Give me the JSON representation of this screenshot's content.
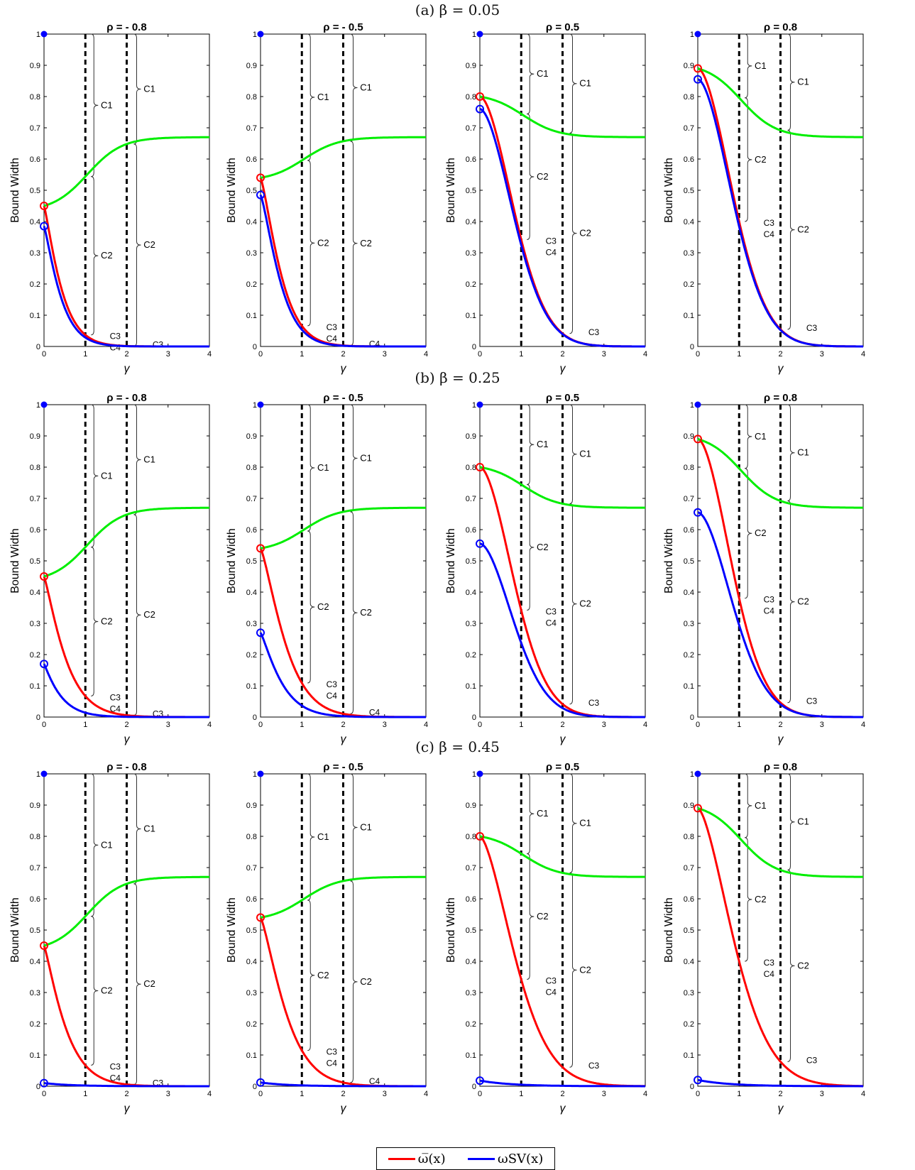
{
  "figure": {
    "row_titles": [
      "(a) β = 0.05",
      "(b) β = 0.25",
      "(c) β = 0.45"
    ],
    "legend": [
      {
        "label": "ω̅(x)",
        "color": "#ff0000"
      },
      {
        "label": "ωSV(x)",
        "color": "#0000ff"
      }
    ],
    "colors": {
      "red": "#ff0000",
      "blue": "#0000ff",
      "green": "#00ee00",
      "dashed": "#000000"
    }
  },
  "chart_data": [
    {
      "type": "line",
      "row": "(a) β = 0.05",
      "title": "ρ = - 0.8",
      "xlabel": "γ",
      "ylabel": "Bound Width",
      "xlim": [
        0,
        4
      ],
      "ylim": [
        0,
        1
      ],
      "xticks": [
        0,
        1,
        2,
        3,
        4
      ],
      "yticks": [
        0,
        0.1,
        0.2,
        0.3,
        0.4,
        0.5,
        0.6,
        0.7,
        0.8,
        0.9,
        1
      ],
      "vlines": [
        1,
        2
      ],
      "series": [
        {
          "color": "red",
          "start": 0.45,
          "rate": 2.5,
          "power": 1.2
        },
        {
          "color": "blue",
          "start": 0.385,
          "rate": 2.6,
          "power": 1.2
        },
        {
          "color": "green",
          "start": 0.45,
          "end": 0.67
        }
      ],
      "annotations": [
        "C1",
        "C2",
        "C3",
        "C4",
        "C1",
        "C2",
        "C3"
      ]
    },
    {
      "type": "line",
      "row": "(a) β = 0.05",
      "title": "ρ = - 0.5",
      "xlabel": "γ",
      "ylabel": "Bound Width",
      "xlim": [
        0,
        4
      ],
      "ylim": [
        0,
        1
      ],
      "xticks": [
        0,
        1,
        2,
        3,
        4
      ],
      "yticks": [
        0,
        0.1,
        0.2,
        0.3,
        0.4,
        0.5,
        0.6,
        0.7,
        0.8,
        0.9,
        1
      ],
      "vlines": [
        1,
        2
      ],
      "series": [
        {
          "color": "red",
          "start": 0.54,
          "rate": 2.1,
          "power": 1.3
        },
        {
          "color": "blue",
          "start": 0.485,
          "rate": 2.2,
          "power": 1.3
        },
        {
          "color": "green",
          "start": 0.54,
          "end": 0.67
        }
      ],
      "annotations": [
        "C1",
        "C2",
        "C3",
        "C4",
        "C1",
        "C2",
        "C4"
      ]
    },
    {
      "type": "line",
      "row": "(a) β = 0.05",
      "title": "ρ = 0.5",
      "xlabel": "γ",
      "ylabel": "Bound Width",
      "xlim": [
        0,
        4
      ],
      "ylim": [
        0,
        1
      ],
      "xticks": [
        0,
        1,
        2,
        3,
        4
      ],
      "yticks": [
        0,
        0.1,
        0.2,
        0.3,
        0.4,
        0.5,
        0.6,
        0.7,
        0.8,
        0.9,
        1
      ],
      "vlines": [
        1,
        2
      ],
      "series": [
        {
          "color": "red",
          "start": 0.8,
          "rate": 0.85,
          "power": 1.8
        },
        {
          "color": "blue",
          "start": 0.76,
          "rate": 0.85,
          "power": 1.8
        },
        {
          "color": "green",
          "start": 0.8,
          "end": 0.67
        }
      ],
      "annotations": [
        "C1",
        "C2",
        "C3",
        "C4",
        "C1",
        "C2",
        "C3"
      ]
    },
    {
      "type": "line",
      "row": "(a) β = 0.05",
      "title": "ρ = 0.8",
      "xlabel": "γ",
      "ylabel": "Bound Width",
      "xlim": [
        0,
        4
      ],
      "ylim": [
        0,
        1
      ],
      "xticks": [
        0,
        1,
        2,
        3,
        4
      ],
      "yticks": [
        0,
        0.1,
        0.2,
        0.3,
        0.4,
        0.5,
        0.6,
        0.7,
        0.8,
        0.9,
        1
      ],
      "vlines": [
        1,
        2
      ],
      "series": [
        {
          "color": "red",
          "start": 0.89,
          "rate": 0.8,
          "power": 1.8
        },
        {
          "color": "blue",
          "start": 0.855,
          "rate": 0.8,
          "power": 1.8
        },
        {
          "color": "green",
          "start": 0.89,
          "end": 0.67
        }
      ],
      "annotations": [
        "C1",
        "C2",
        "C3",
        "C4",
        "C1",
        "C2",
        "C3"
      ]
    },
    {
      "type": "line",
      "row": "(b) β = 0.25",
      "title": "ρ = - 0.8",
      "xlabel": "γ",
      "ylabel": "Bound Width",
      "xlim": [
        0,
        4
      ],
      "ylim": [
        0,
        1
      ],
      "xticks": [
        0,
        1,
        2,
        3,
        4
      ],
      "yticks": [
        0,
        0.1,
        0.2,
        0.3,
        0.4,
        0.5,
        0.6,
        0.7,
        0.8,
        0.9,
        1
      ],
      "vlines": [
        1,
        2
      ],
      "series": [
        {
          "color": "red",
          "start": 0.45,
          "rate": 1.9,
          "power": 1.2
        },
        {
          "color": "blue",
          "start": 0.17,
          "rate": 2.5,
          "power": 1.1
        },
        {
          "color": "green",
          "start": 0.45,
          "end": 0.67
        }
      ],
      "annotations": [
        "C1",
        "C2",
        "C3",
        "C4",
        "C1",
        "C2",
        "C3"
      ]
    },
    {
      "type": "line",
      "row": "(b) β = 0.25",
      "title": "ρ = - 0.5",
      "xlabel": "γ",
      "ylabel": "Bound Width",
      "xlim": [
        0,
        4
      ],
      "ylim": [
        0,
        1
      ],
      "xticks": [
        0,
        1,
        2,
        3,
        4
      ],
      "yticks": [
        0,
        0.1,
        0.2,
        0.3,
        0.4,
        0.5,
        0.6,
        0.7,
        0.8,
        0.9,
        1
      ],
      "vlines": [
        1,
        2
      ],
      "series": [
        {
          "color": "red",
          "start": 0.54,
          "rate": 1.6,
          "power": 1.3
        },
        {
          "color": "blue",
          "start": 0.27,
          "rate": 2.0,
          "power": 1.2
        },
        {
          "color": "green",
          "start": 0.54,
          "end": 0.67
        }
      ],
      "annotations": [
        "C1",
        "C2",
        "C3",
        "C4",
        "C1",
        "C2",
        "C4"
      ]
    },
    {
      "type": "line",
      "row": "(b) β = 0.25",
      "title": "ρ = 0.5",
      "xlabel": "γ",
      "ylabel": "Bound Width",
      "xlim": [
        0,
        4
      ],
      "ylim": [
        0,
        1
      ],
      "xticks": [
        0,
        1,
        2,
        3,
        4
      ],
      "yticks": [
        0,
        0.1,
        0.2,
        0.3,
        0.4,
        0.5,
        0.6,
        0.7,
        0.8,
        0.9,
        1
      ],
      "vlines": [
        1,
        2
      ],
      "series": [
        {
          "color": "red",
          "start": 0.8,
          "rate": 0.85,
          "power": 1.8
        },
        {
          "color": "blue",
          "start": 0.555,
          "rate": 0.85,
          "power": 1.8
        },
        {
          "color": "green",
          "start": 0.8,
          "end": 0.67
        }
      ],
      "annotations": [
        "C1",
        "C2",
        "C3",
        "C4",
        "C1",
        "C2",
        "C3"
      ]
    },
    {
      "type": "line",
      "row": "(b) β = 0.25",
      "title": "ρ = 0.8",
      "xlabel": "γ",
      "ylabel": "Bound Width",
      "xlim": [
        0,
        4
      ],
      "ylim": [
        0,
        1
      ],
      "xticks": [
        0,
        1,
        2,
        3,
        4
      ],
      "yticks": [
        0,
        0.1,
        0.2,
        0.3,
        0.4,
        0.5,
        0.6,
        0.7,
        0.8,
        0.9,
        1
      ],
      "vlines": [
        1,
        2
      ],
      "series": [
        {
          "color": "red",
          "start": 0.89,
          "rate": 0.85,
          "power": 1.8
        },
        {
          "color": "blue",
          "start": 0.655,
          "rate": 0.8,
          "power": 1.8
        },
        {
          "color": "green",
          "start": 0.89,
          "end": 0.67
        }
      ],
      "annotations": [
        "C1",
        "C2",
        "C3",
        "C4",
        "C1",
        "C2",
        "C3"
      ]
    },
    {
      "type": "line",
      "row": "(c) β = 0.45",
      "title": "ρ = - 0.8",
      "xlabel": "γ",
      "ylabel": "Bound Width",
      "xlim": [
        0,
        4
      ],
      "ylim": [
        0,
        1
      ],
      "xticks": [
        0,
        1,
        2,
        3,
        4
      ],
      "yticks": [
        0,
        0.1,
        0.2,
        0.3,
        0.4,
        0.5,
        0.6,
        0.7,
        0.8,
        0.9,
        1
      ],
      "vlines": [
        1,
        2
      ],
      "series": [
        {
          "color": "red",
          "start": 0.45,
          "rate": 1.9,
          "power": 1.2
        },
        {
          "color": "blue",
          "start": 0.01,
          "rate": 1.5,
          "power": 1.0
        },
        {
          "color": "green",
          "start": 0.45,
          "end": 0.67
        }
      ],
      "annotations": [
        "C1",
        "C2",
        "C3",
        "C4",
        "C1",
        "C2",
        "C3"
      ]
    },
    {
      "type": "line",
      "row": "(c) β = 0.45",
      "title": "ρ = - 0.5",
      "xlabel": "γ",
      "ylabel": "Bound Width",
      "xlim": [
        0,
        4
      ],
      "ylim": [
        0,
        1
      ],
      "xticks": [
        0,
        1,
        2,
        3,
        4
      ],
      "yticks": [
        0,
        0.1,
        0.2,
        0.3,
        0.4,
        0.5,
        0.6,
        0.7,
        0.8,
        0.9,
        1
      ],
      "vlines": [
        1,
        2
      ],
      "series": [
        {
          "color": "red",
          "start": 0.54,
          "rate": 1.55,
          "power": 1.3
        },
        {
          "color": "blue",
          "start": 0.012,
          "rate": 1.5,
          "power": 1.0
        },
        {
          "color": "green",
          "start": 0.54,
          "end": 0.67
        }
      ],
      "annotations": [
        "C1",
        "C2",
        "C3",
        "C4",
        "C1",
        "C2",
        "C4"
      ]
    },
    {
      "type": "line",
      "row": "(c) β = 0.45",
      "title": "ρ = 0.5",
      "xlabel": "γ",
      "ylabel": "Bound Width",
      "xlim": [
        0,
        4
      ],
      "ylim": [
        0,
        1
      ],
      "xticks": [
        0,
        1,
        2,
        3,
        4
      ],
      "yticks": [
        0,
        0.1,
        0.2,
        0.3,
        0.4,
        0.5,
        0.6,
        0.7,
        0.8,
        0.9,
        1
      ],
      "vlines": [
        1,
        2
      ],
      "series": [
        {
          "color": "red",
          "start": 0.8,
          "rate": 0.85,
          "power": 1.6
        },
        {
          "color": "blue",
          "start": 0.018,
          "rate": 1.3,
          "power": 1.0
        },
        {
          "color": "green",
          "start": 0.8,
          "end": 0.67
        }
      ],
      "annotations": [
        "C1",
        "C2",
        "C3",
        "C4",
        "C1",
        "C2",
        "C3"
      ]
    },
    {
      "type": "line",
      "row": "(c) β = 0.45",
      "title": "ρ = 0.8",
      "xlabel": "γ",
      "ylabel": "Bound Width",
      "xlim": [
        0,
        4
      ],
      "ylim": [
        0,
        1
      ],
      "xticks": [
        0,
        1,
        2,
        3,
        4
      ],
      "yticks": [
        0,
        0.1,
        0.2,
        0.3,
        0.4,
        0.5,
        0.6,
        0.7,
        0.8,
        0.9,
        1
      ],
      "vlines": [
        1,
        2
      ],
      "series": [
        {
          "color": "red",
          "start": 0.89,
          "rate": 0.8,
          "power": 1.6
        },
        {
          "color": "blue",
          "start": 0.02,
          "rate": 1.3,
          "power": 1.0
        },
        {
          "color": "green",
          "start": 0.89,
          "end": 0.67
        }
      ],
      "annotations": [
        "C1",
        "C2",
        "C3",
        "C4",
        "C1",
        "C2",
        "C3"
      ]
    }
  ]
}
